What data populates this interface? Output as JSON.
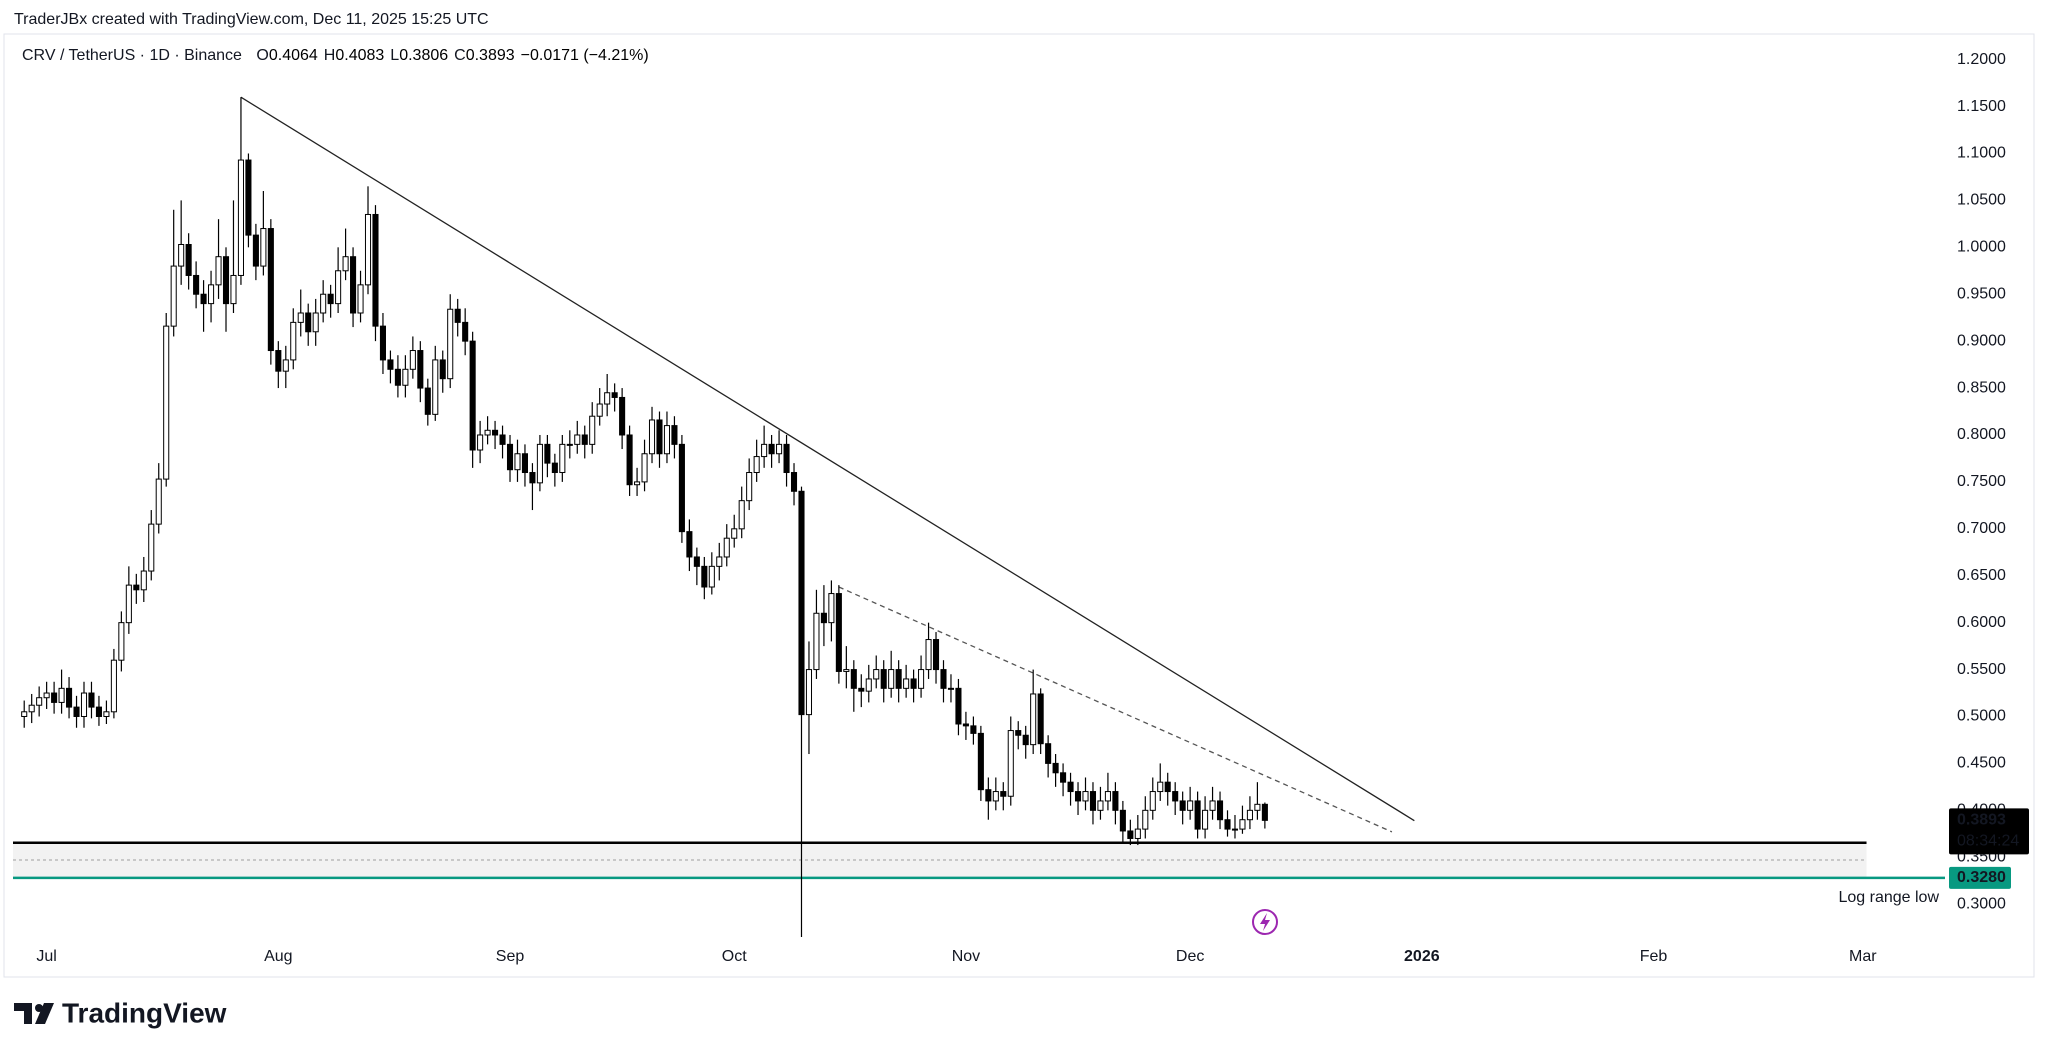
{
  "chart_data": {
    "type": "candlestick",
    "watermark": "TraderJBx created with TradingView.com, Dec 11, 2025 15:25 UTC",
    "symbol": "CRV / TetherUS · 1D · Binance",
    "ohlc_letters": [
      "O",
      "H",
      "L",
      "C"
    ],
    "change": "−0.0171 (−4.21%)",
    "up_color": "#ffffff",
    "down_color": "#000000",
    "x": [
      -3,
      -2,
      -1,
      0,
      1,
      2,
      3,
      4,
      5,
      6,
      7,
      8,
      9,
      10,
      11,
      12,
      13,
      14,
      15,
      16,
      17,
      18,
      19,
      20,
      21,
      22,
      23,
      24,
      25,
      26,
      27,
      28,
      29,
      30,
      31,
      32,
      33,
      34,
      35,
      36,
      37,
      38,
      39,
      40,
      41,
      42,
      43,
      44,
      45,
      46,
      47,
      48,
      49,
      50,
      51,
      52,
      53,
      54,
      55,
      56,
      57,
      58,
      59,
      60,
      61,
      62,
      63,
      64,
      65,
      66,
      67,
      68,
      69,
      70,
      71,
      72,
      73,
      74,
      75,
      76,
      77,
      78,
      79,
      80,
      81,
      82,
      83,
      84,
      85,
      86,
      87,
      88,
      89,
      90,
      91,
      92,
      93,
      94,
      95,
      96,
      97,
      98,
      99,
      100,
      101,
      102,
      103,
      104,
      105,
      106,
      107,
      108,
      109,
      110,
      111,
      112,
      113,
      114,
      115,
      116,
      117,
      118,
      119,
      120,
      121,
      122,
      123,
      124,
      125,
      126,
      127,
      128,
      129,
      130,
      131,
      132,
      133,
      134,
      135,
      136,
      137,
      138,
      139,
      140,
      141,
      142,
      143,
      144,
      145,
      146,
      147,
      148,
      149,
      150,
      151,
      152,
      153,
      154,
      155,
      156,
      157,
      158,
      159,
      160,
      161,
      162,
      163
    ],
    "open": [
      0.5,
      0.505,
      0.512,
      0.52,
      0.525,
      0.515,
      0.53,
      0.51,
      0.5,
      0.525,
      0.51,
      0.5,
      0.505,
      0.56,
      0.6,
      0.64,
      0.635,
      0.655,
      0.705,
      0.753,
      0.916,
      0.98,
      1.003,
      0.97,
      0.95,
      0.94,
      0.96,
      0.99,
      0.94,
      0.97,
      1.093,
      1.013,
      0.98,
      1.02,
      0.89,
      0.868,
      0.88,
      0.92,
      0.93,
      0.91,
      0.93,
      0.95,
      0.94,
      0.975,
      0.99,
      0.93,
      0.96,
      1.035,
      0.916,
      0.88,
      0.87,
      0.853,
      0.87,
      0.89,
      0.85,
      0.822,
      0.88,
      0.86,
      0.934,
      0.92,
      0.9,
      0.784,
      0.8,
      0.805,
      0.8,
      0.79,
      0.763,
      0.78,
      0.76,
      0.749,
      0.79,
      0.77,
      0.76,
      0.79,
      0.79,
      0.8,
      0.79,
      0.82,
      0.833,
      0.845,
      0.84,
      0.8,
      0.747,
      0.75,
      0.78,
      0.816,
      0.78,
      0.81,
      0.79,
      0.697,
      0.67,
      0.66,
      0.638,
      0.66,
      0.67,
      0.69,
      0.7,
      0.73,
      0.76,
      0.777,
      0.79,
      0.78,
      0.79,
      0.76,
      0.74,
      0.502,
      0.55,
      0.61,
      0.6,
      0.631,
      0.548,
      0.55,
      0.53,
      0.527,
      0.54,
      0.55,
      0.53,
      0.55,
      0.53,
      0.54,
      0.53,
      0.55,
      0.582,
      0.55,
      0.53,
      0.53,
      0.492,
      0.49,
      0.482,
      0.422,
      0.41,
      0.42,
      0.415,
      0.485,
      0.48,
      0.47,
      0.524,
      0.471,
      0.45,
      0.44,
      0.43,
      0.42,
      0.41,
      0.42,
      0.4,
      0.41,
      0.42,
      0.4,
      0.378,
      0.37,
      0.38,
      0.4,
      0.42,
      0.43,
      0.42,
      0.41,
      0.4,
      0.41,
      0.38,
      0.4,
      0.41,
      0.39,
      0.38,
      0.38,
      0.39,
      0.4,
      0.4064
    ],
    "high": [
      0.517,
      0.524,
      0.532,
      0.537,
      0.537,
      0.55,
      0.542,
      0.522,
      0.537,
      0.537,
      0.522,
      0.517,
      0.572,
      0.612,
      0.66,
      0.652,
      0.67,
      0.72,
      0.77,
      0.93,
      1.04,
      1.05,
      1.015,
      0.985,
      0.965,
      0.975,
      1.03,
      1.0,
      1.05,
      1.16,
      1.1,
      1.025,
      1.06,
      1.03,
      0.9,
      0.895,
      0.935,
      0.955,
      0.94,
      0.945,
      0.965,
      0.96,
      1.0,
      1.02,
      1.0,
      0.975,
      1.065,
      1.045,
      0.93,
      0.89,
      0.885,
      0.885,
      0.905,
      0.9,
      0.86,
      0.895,
      0.89,
      0.95,
      0.945,
      0.935,
      0.91,
      0.815,
      0.82,
      0.815,
      0.81,
      0.8,
      0.795,
      0.79,
      0.77,
      0.8,
      0.8,
      0.78,
      0.8,
      0.805,
      0.815,
      0.81,
      0.835,
      0.85,
      0.865,
      0.855,
      0.85,
      0.81,
      0.765,
      0.795,
      0.83,
      0.825,
      0.825,
      0.82,
      0.8,
      0.71,
      0.68,
      0.67,
      0.675,
      0.685,
      0.705,
      0.715,
      0.745,
      0.775,
      0.795,
      0.81,
      0.8,
      0.805,
      0.8,
      0.77,
      0.745,
      0.58,
      0.635,
      0.64,
      0.645,
      0.64,
      0.575,
      0.56,
      0.545,
      0.555,
      0.565,
      0.56,
      0.57,
      0.56,
      0.555,
      0.55,
      0.565,
      0.6,
      0.59,
      0.56,
      0.545,
      0.54,
      0.505,
      0.5,
      0.49,
      0.435,
      0.435,
      0.43,
      0.5,
      0.495,
      0.49,
      0.55,
      0.53,
      0.48,
      0.46,
      0.45,
      0.44,
      0.43,
      0.435,
      0.43,
      0.425,
      0.44,
      0.43,
      0.41,
      0.39,
      0.395,
      0.415,
      0.435,
      0.45,
      0.44,
      0.43,
      0.42,
      0.425,
      0.42,
      0.415,
      0.425,
      0.42,
      0.4,
      0.395,
      0.405,
      0.415,
      0.43,
      0.4083
    ],
    "low": [
      0.488,
      0.493,
      0.5,
      0.508,
      0.503,
      0.503,
      0.498,
      0.488,
      0.488,
      0.498,
      0.49,
      0.492,
      0.498,
      0.548,
      0.588,
      0.62,
      0.622,
      0.645,
      0.695,
      0.745,
      0.905,
      0.96,
      0.955,
      0.935,
      0.91,
      0.92,
      0.945,
      0.91,
      0.93,
      0.96,
      1.0,
      0.965,
      0.97,
      0.875,
      0.85,
      0.85,
      0.87,
      0.905,
      0.895,
      0.895,
      0.92,
      0.925,
      0.93,
      0.965,
      0.915,
      0.92,
      0.95,
      0.9,
      0.865,
      0.855,
      0.84,
      0.84,
      0.86,
      0.835,
      0.81,
      0.815,
      0.845,
      0.85,
      0.905,
      0.885,
      0.765,
      0.77,
      0.79,
      0.785,
      0.775,
      0.75,
      0.75,
      0.745,
      0.72,
      0.74,
      0.755,
      0.745,
      0.75,
      0.775,
      0.78,
      0.775,
      0.78,
      0.81,
      0.82,
      0.825,
      0.785,
      0.735,
      0.735,
      0.74,
      0.77,
      0.765,
      0.77,
      0.775,
      0.685,
      0.655,
      0.64,
      0.625,
      0.63,
      0.645,
      0.66,
      0.68,
      0.69,
      0.72,
      0.75,
      0.765,
      0.765,
      0.77,
      0.745,
      0.725,
      0.265,
      0.46,
      0.54,
      0.575,
      0.58,
      0.535,
      0.53,
      0.505,
      0.51,
      0.515,
      0.53,
      0.515,
      0.52,
      0.515,
      0.52,
      0.515,
      0.52,
      0.54,
      0.535,
      0.515,
      0.515,
      0.48,
      0.475,
      0.47,
      0.41,
      0.39,
      0.4,
      0.4,
      0.405,
      0.465,
      0.455,
      0.46,
      0.46,
      0.435,
      0.425,
      0.415,
      0.405,
      0.395,
      0.4,
      0.385,
      0.39,
      0.4,
      0.385,
      0.365,
      0.363,
      0.363,
      0.37,
      0.39,
      0.41,
      0.405,
      0.395,
      0.385,
      0.39,
      0.37,
      0.37,
      0.39,
      0.38,
      0.372,
      0.37,
      0.375,
      0.38,
      0.39,
      0.3806
    ],
    "close": [
      0.505,
      0.512,
      0.52,
      0.525,
      0.515,
      0.53,
      0.51,
      0.5,
      0.525,
      0.51,
      0.5,
      0.505,
      0.56,
      0.6,
      0.64,
      0.635,
      0.655,
      0.705,
      0.753,
      0.916,
      0.98,
      1.003,
      0.97,
      0.95,
      0.94,
      0.96,
      0.99,
      0.94,
      0.97,
      1.093,
      1.013,
      0.98,
      1.02,
      0.89,
      0.868,
      0.88,
      0.92,
      0.93,
      0.91,
      0.93,
      0.95,
      0.94,
      0.975,
      0.99,
      0.93,
      0.96,
      1.035,
      0.916,
      0.88,
      0.87,
      0.853,
      0.87,
      0.89,
      0.85,
      0.822,
      0.88,
      0.86,
      0.934,
      0.92,
      0.9,
      0.784,
      0.8,
      0.805,
      0.8,
      0.79,
      0.763,
      0.78,
      0.76,
      0.749,
      0.79,
      0.77,
      0.76,
      0.79,
      0.79,
      0.8,
      0.79,
      0.82,
      0.833,
      0.845,
      0.84,
      0.8,
      0.747,
      0.75,
      0.78,
      0.816,
      0.78,
      0.81,
      0.79,
      0.697,
      0.67,
      0.66,
      0.638,
      0.66,
      0.67,
      0.69,
      0.7,
      0.73,
      0.76,
      0.777,
      0.79,
      0.78,
      0.79,
      0.76,
      0.74,
      0.502,
      0.55,
      0.61,
      0.6,
      0.631,
      0.548,
      0.55,
      0.53,
      0.527,
      0.54,
      0.55,
      0.53,
      0.55,
      0.53,
      0.54,
      0.53,
      0.55,
      0.582,
      0.55,
      0.53,
      0.53,
      0.492,
      0.49,
      0.482,
      0.422,
      0.41,
      0.42,
      0.415,
      0.485,
      0.48,
      0.47,
      0.524,
      0.471,
      0.45,
      0.44,
      0.43,
      0.42,
      0.41,
      0.42,
      0.4,
      0.41,
      0.42,
      0.4,
      0.378,
      0.37,
      0.38,
      0.4,
      0.42,
      0.43,
      0.42,
      0.41,
      0.4,
      0.41,
      0.38,
      0.4,
      0.41,
      0.39,
      0.38,
      0.38,
      0.39,
      0.4,
      0.4064,
      0.3893
    ],
    "xlim": [
      -4.5,
      254
    ],
    "xticks": [
      {
        "value": 0,
        "label": "Jul"
      },
      {
        "value": 31,
        "label": "Aug"
      },
      {
        "value": 62,
        "label": "Sep"
      },
      {
        "value": 92,
        "label": "Oct"
      },
      {
        "value": 123,
        "label": "Nov"
      },
      {
        "value": 153,
        "label": "Dec"
      },
      {
        "value": 184,
        "label": "2026"
      },
      {
        "value": 215,
        "label": "Feb"
      },
      {
        "value": 243,
        "label": "Mar"
      }
    ],
    "ylim": [
      0.265,
      1.222
    ],
    "yticks": [
      {
        "value": 0.3,
        "label": "0.3000"
      },
      {
        "value": 0.35,
        "label": "0.3500"
      },
      {
        "value": 0.4,
        "label": "0.4000"
      },
      {
        "value": 0.45,
        "label": "0.4500"
      },
      {
        "value": 0.5,
        "label": "0.5000"
      },
      {
        "value": 0.55,
        "label": "0.5500"
      },
      {
        "value": 0.6,
        "label": "0.6000"
      },
      {
        "value": 0.65,
        "label": "0.6500"
      },
      {
        "value": 0.7,
        "label": "0.7000"
      },
      {
        "value": 0.75,
        "label": "0.7500"
      },
      {
        "value": 0.8,
        "label": "0.8000"
      },
      {
        "value": 0.85,
        "label": "0.8500"
      },
      {
        "value": 0.9,
        "label": "0.9000"
      },
      {
        "value": 0.95,
        "label": "0.9500"
      },
      {
        "value": 1.0,
        "label": "1.0000"
      },
      {
        "value": 1.05,
        "label": "1.0500"
      },
      {
        "value": 1.1,
        "label": "1.1000"
      },
      {
        "value": 1.15,
        "label": "1.1500"
      },
      {
        "value": 1.2,
        "label": "1.2000"
      }
    ],
    "trendlines": [
      {
        "x": [
          26,
          183
        ],
        "y": [
          1.16,
          0.389
        ],
        "style": "solid"
      },
      {
        "x": [
          106,
          180
        ],
        "y": [
          0.638,
          0.377
        ],
        "style": "dashed"
      }
    ],
    "support": {
      "top": 0.3655,
      "mid": 0.347,
      "bottom": 0.329,
      "end_x": 243.5
    },
    "range_low": {
      "value": 0.328,
      "label": "0.3280"
    },
    "range_low_text": "Log range low",
    "range_low_color": "#089981",
    "countdown": "08:34:24",
    "brand": "TradingView"
  }
}
